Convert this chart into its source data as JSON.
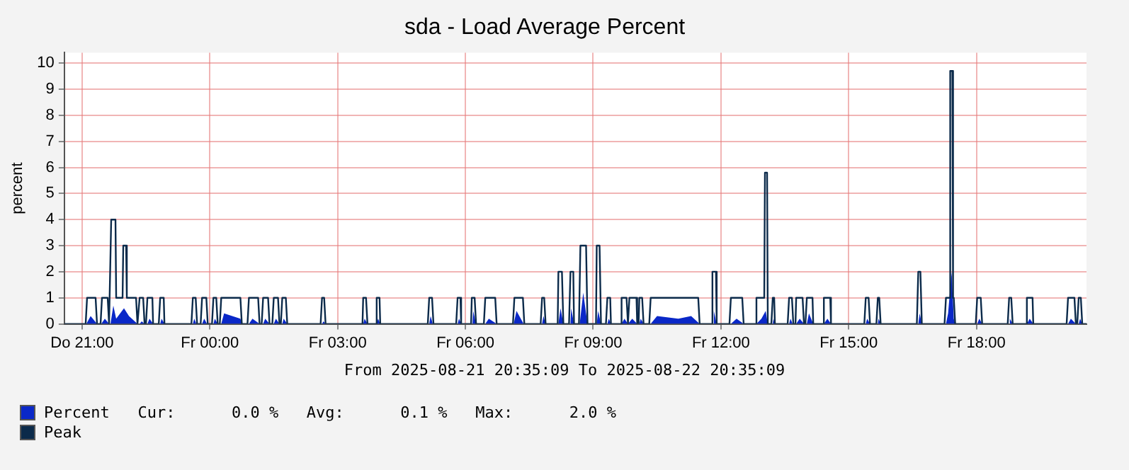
{
  "chart_data": {
    "type": "line",
    "title": "sda - Load Average Percent",
    "subtitle": "From 2025-08-21 20:35:09 To 2025-08-22 20:35:09",
    "ylabel": "percent",
    "annotations": [
      "Cur:      0.0 %   Avg:      0.1 %   Max:      2.0 %"
    ],
    "xlim": [
      "2025-08-21T20:35",
      "2025-08-22T20:35"
    ],
    "xticks": [
      {
        "value": "2025-08-21T21:00",
        "label": "Do 21:00"
      },
      {
        "value": "2025-08-22T00:00",
        "label": "Fr 00:00"
      },
      {
        "value": "2025-08-22T03:00",
        "label": "Fr 03:00"
      },
      {
        "value": "2025-08-22T06:00",
        "label": "Fr 06:00"
      },
      {
        "value": "2025-08-22T09:00",
        "label": "Fr 09:00"
      },
      {
        "value": "2025-08-22T12:00",
        "label": "Fr 12:00"
      },
      {
        "value": "2025-08-22T15:00",
        "label": "Fr 15:00"
      },
      {
        "value": "2025-08-22T18:00",
        "label": "Fr 18:00"
      }
    ],
    "ylim": [
      0,
      10.4
    ],
    "yticks": [
      0,
      1,
      2,
      3,
      4,
      5,
      6,
      7,
      8,
      9,
      10
    ],
    "grid": true,
    "legend": "bottom left",
    "marker": "none",
    "series": [
      {
        "name": "Percent",
        "type": "area",
        "color": "#0a28c8",
        "x": [
          "2025-08-21T20:35",
          "2025-08-21T21:06",
          "2025-08-21T21:12",
          "2025-08-21T21:21",
          "2025-08-21T21:27",
          "2025-08-21T21:32",
          "2025-08-21T21:38",
          "2025-08-21T21:40",
          "2025-08-21T21:44",
          "2025-08-21T21:48",
          "2025-08-21T21:59",
          "2025-08-21T22:06",
          "2025-08-21T22:18",
          "2025-08-21T22:21",
          "2025-08-21T22:24",
          "2025-08-21T22:28",
          "2025-08-21T22:32",
          "2025-08-21T22:35",
          "2025-08-21T22:40",
          "2025-08-21T22:50",
          "2025-08-21T22:52",
          "2025-08-21T22:56",
          "2025-08-21T23:36",
          "2025-08-21T23:38",
          "2025-08-21T23:41",
          "2025-08-21T23:49",
          "2025-08-21T23:52",
          "2025-08-21T23:56",
          "2025-08-22T00:05",
          "2025-08-22T00:07",
          "2025-08-22T00:11",
          "2025-08-22T00:16",
          "2025-08-22T00:20",
          "2025-08-22T00:43",
          "2025-08-22T00:45",
          "2025-08-22T00:55",
          "2025-08-22T01:00",
          "2025-08-22T01:10",
          "2025-08-22T01:15",
          "2025-08-22T01:18",
          "2025-08-22T01:24",
          "2025-08-22T01:30",
          "2025-08-22T01:33",
          "2025-08-22T01:38",
          "2025-08-22T01:42",
          "2025-08-22T01:44",
          "2025-08-22T01:49",
          "2025-08-22T02:38",
          "2025-08-22T02:40",
          "2025-08-22T02:43",
          "2025-08-22T03:36",
          "2025-08-22T03:38",
          "2025-08-22T03:42",
          "2025-08-22T03:55",
          "2025-08-22T03:57",
          "2025-08-22T04:00",
          "2025-08-22T05:09",
          "2025-08-22T05:11",
          "2025-08-22T05:14",
          "2025-08-22T05:49",
          "2025-08-22T05:51",
          "2025-08-22T05:54",
          "2025-08-22T06:10",
          "2025-08-22T06:11",
          "2025-08-22T06:15",
          "2025-08-22T06:28",
          "2025-08-22T06:33",
          "2025-08-22T06:44",
          "2025-08-22T07:08",
          "2025-08-22T07:12",
          "2025-08-22T07:22",
          "2025-08-22T07:48",
          "2025-08-22T07:50",
          "2025-08-22T07:53",
          "2025-08-22T08:11",
          "2025-08-22T08:14",
          "2025-08-22T08:18",
          "2025-08-22T08:28",
          "2025-08-22T08:29",
          "2025-08-22T08:33",
          "2025-08-22T08:41",
          "2025-08-22T08:46",
          "2025-08-22T08:52",
          "2025-08-22T09:05",
          "2025-08-22T09:07",
          "2025-08-22T09:11",
          "2025-08-22T09:20",
          "2025-08-22T09:22",
          "2025-08-22T09:25",
          "2025-08-22T09:40",
          "2025-08-22T09:44",
          "2025-08-22T09:49",
          "2025-08-22T09:50",
          "2025-08-22T09:55",
          "2025-08-22T10:02",
          "2025-08-22T10:05",
          "2025-08-22T10:07",
          "2025-08-22T10:11",
          "2025-08-22T10:21",
          "2025-08-22T10:30",
          "2025-08-22T11:00",
          "2025-08-22T11:18",
          "2025-08-22T11:30",
          "2025-08-22T11:49",
          "2025-08-22T11:50",
          "2025-08-22T11:54",
          "2025-08-22T12:14",
          "2025-08-22T12:22",
          "2025-08-22T12:32",
          "2025-08-22T12:50",
          "2025-08-22T12:57",
          "2025-08-22T13:03",
          "2025-08-22T13:06",
          "2025-08-22T13:13",
          "2025-08-22T13:14",
          "2025-08-22T13:16",
          "2025-08-22T13:36",
          "2025-08-22T13:38",
          "2025-08-22T13:41",
          "2025-08-22T13:46",
          "2025-08-22T13:51",
          "2025-08-22T13:57",
          "2025-08-22T14:01",
          "2025-08-22T14:04",
          "2025-08-22T14:10",
          "2025-08-22T14:25",
          "2025-08-22T14:30",
          "2025-08-22T14:35",
          "2025-08-22T15:24",
          "2025-08-22T15:26",
          "2025-08-22T15:30",
          "2025-08-22T15:41",
          "2025-08-22T15:42",
          "2025-08-22T15:45",
          "2025-08-22T16:38",
          "2025-08-22T16:40",
          "2025-08-22T16:43",
          "2025-08-22T17:17",
          "2025-08-22T17:20",
          "2025-08-22T17:25",
          "2025-08-22T17:28",
          "2025-08-22T17:30",
          "2025-08-22T18:01",
          "2025-08-22T18:04",
          "2025-08-22T18:08",
          "2025-08-22T18:46",
          "2025-08-22T18:47",
          "2025-08-22T18:51",
          "2025-08-22T19:11",
          "2025-08-22T19:15",
          "2025-08-22T19:20",
          "2025-08-22T20:09",
          "2025-08-22T20:13",
          "2025-08-22T20:20",
          "2025-08-22T20:24",
          "2025-08-22T20:26",
          "2025-08-22T20:29",
          "2025-08-22T20:35"
        ],
        "values": [
          0,
          0,
          0.3,
          0,
          0,
          0.2,
          0,
          0,
          0.7,
          0.2,
          0.6,
          0.3,
          0,
          0,
          0.1,
          0,
          0,
          0.2,
          0,
          0,
          0.2,
          0,
          0,
          0.2,
          0,
          0,
          0.2,
          0,
          0,
          0.2,
          0,
          0,
          0.4,
          0.2,
          0,
          0,
          0.2,
          0,
          0,
          0.2,
          0,
          0,
          0.2,
          0,
          0,
          0.2,
          0,
          0,
          0.1,
          0,
          0,
          0.2,
          0,
          0,
          0.2,
          0,
          0,
          0.3,
          0,
          0,
          0.2,
          0,
          0,
          0.5,
          0,
          0,
          0.2,
          0,
          0,
          0.5,
          0,
          0,
          0.3,
          0,
          0,
          0.6,
          0,
          0,
          0.6,
          0,
          0,
          1.2,
          0,
          0,
          0.5,
          0,
          0,
          0.2,
          0,
          0,
          0.2,
          0,
          0,
          0.2,
          0,
          0,
          0.2,
          0,
          0,
          0.3,
          0.2,
          0.3,
          0,
          0,
          0.5,
          0,
          0,
          0.2,
          0,
          0,
          0.2,
          0.5,
          0,
          0,
          0.2,
          0,
          0,
          0.2,
          0,
          0,
          0.2,
          0,
          0,
          0.4,
          0,
          0,
          0.2,
          0,
          0,
          0.2,
          0,
          0,
          0.2,
          0,
          0,
          0.4,
          0,
          0,
          0.4,
          2.0,
          0.2,
          0,
          0,
          0.2,
          0,
          0,
          0.2,
          0,
          0,
          0.2,
          0,
          0,
          0.2,
          0,
          0,
          0.2,
          0,
          0
        ]
      },
      {
        "name": "Peak",
        "color": "#0b2a4a",
        "x": [
          "2025-08-21T20:35",
          "2025-08-21T21:05",
          "2025-08-21T21:07",
          "2025-08-21T21:19",
          "2025-08-21T21:21",
          "2025-08-21T21:26",
          "2025-08-21T21:28",
          "2025-08-21T21:36",
          "2025-08-21T21:38",
          "2025-08-21T21:39",
          "2025-08-21T21:41",
          "2025-08-21T21:47",
          "2025-08-21T21:48",
          "2025-08-21T21:57",
          "2025-08-21T21:58",
          "2025-08-21T22:02",
          "2025-08-21T22:03",
          "2025-08-21T22:16",
          "2025-08-21T22:18",
          "2025-08-21T22:19",
          "2025-08-21T22:21",
          "2025-08-21T22:26",
          "2025-08-21T22:28",
          "2025-08-21T22:30",
          "2025-08-21T22:32",
          "2025-08-21T22:39",
          "2025-08-21T22:40",
          "2025-08-21T22:48",
          "2025-08-21T22:50",
          "2025-08-21T22:55",
          "2025-08-21T22:56",
          "2025-08-21T23:34",
          "2025-08-21T23:36",
          "2025-08-21T23:40",
          "2025-08-21T23:42",
          "2025-08-21T23:47",
          "2025-08-21T23:49",
          "2025-08-21T23:55",
          "2025-08-21T23:57",
          "2025-08-22T00:03",
          "2025-08-22T00:05",
          "2025-08-22T00:09",
          "2025-08-22T00:11",
          "2025-08-22T00:14",
          "2025-08-22T00:16",
          "2025-08-22T00:43",
          "2025-08-22T00:45",
          "2025-08-22T00:53",
          "2025-08-22T00:55",
          "2025-08-22T01:08",
          "2025-08-22T01:10",
          "2025-08-22T01:13",
          "2025-08-22T01:15",
          "2025-08-22T01:22",
          "2025-08-22T01:24",
          "2025-08-22T01:28",
          "2025-08-22T01:30",
          "2025-08-22T01:36",
          "2025-08-22T01:38",
          "2025-08-22T01:40",
          "2025-08-22T01:42",
          "2025-08-22T01:47",
          "2025-08-22T01:49",
          "2025-08-22T02:36",
          "2025-08-22T02:38",
          "2025-08-22T02:41",
          "2025-08-22T02:43",
          "2025-08-22T03:35",
          "2025-08-22T03:36",
          "2025-08-22T03:40",
          "2025-08-22T03:42",
          "2025-08-22T03:54",
          "2025-08-22T03:55",
          "2025-08-22T03:59",
          "2025-08-22T04:00",
          "2025-08-22T05:07",
          "2025-08-22T05:09",
          "2025-08-22T05:13",
          "2025-08-22T05:15",
          "2025-08-22T05:47",
          "2025-08-22T05:49",
          "2025-08-22T05:53",
          "2025-08-22T05:54",
          "2025-08-22T06:08",
          "2025-08-22T06:09",
          "2025-08-22T06:13",
          "2025-08-22T06:15",
          "2025-08-22T06:26",
          "2025-08-22T06:28",
          "2025-08-22T06:42",
          "2025-08-22T06:44",
          "2025-08-22T07:07",
          "2025-08-22T07:09",
          "2025-08-22T07:21",
          "2025-08-22T07:23",
          "2025-08-22T07:46",
          "2025-08-22T07:48",
          "2025-08-22T07:51",
          "2025-08-22T07:53",
          "2025-08-22T08:10",
          "2025-08-22T08:11",
          "2025-08-22T08:16",
          "2025-08-22T08:18",
          "2025-08-22T08:26",
          "2025-08-22T08:28",
          "2025-08-22T08:32",
          "2025-08-22T08:33",
          "2025-08-22T08:40",
          "2025-08-22T08:42",
          "2025-08-22T08:50",
          "2025-08-22T08:52",
          "2025-08-22T09:04",
          "2025-08-22T09:05",
          "2025-08-22T09:09",
          "2025-08-22T09:11",
          "2025-08-22T09:18",
          "2025-08-22T09:20",
          "2025-08-22T09:24",
          "2025-08-22T09:25",
          "2025-08-22T09:39",
          "2025-08-22T09:40",
          "2025-08-22T09:47",
          "2025-08-22T09:49",
          "2025-08-22T09:51",
          "2025-08-22T10:01",
          "2025-08-22T10:02",
          "2025-08-22T10:04",
          "2025-08-22T10:05",
          "2025-08-22T10:09",
          "2025-08-22T10:11",
          "2025-08-22T10:19",
          "2025-08-22T10:21",
          "2025-08-22T11:28",
          "2025-08-22T11:30",
          "2025-08-22T11:47",
          "2025-08-22T11:48",
          "2025-08-22T11:53",
          "2025-08-22T11:54",
          "2025-08-22T12:12",
          "2025-08-22T12:14",
          "2025-08-22T12:30",
          "2025-08-22T12:32",
          "2025-08-22T12:49",
          "2025-08-22T12:50",
          "2025-08-22T13:01",
          "2025-08-22T13:02",
          "2025-08-22T13:05",
          "2025-08-22T13:06",
          "2025-08-22T13:11",
          "2025-08-22T13:13",
          "2025-08-22T13:15",
          "2025-08-22T13:16",
          "2025-08-22T13:34",
          "2025-08-22T13:36",
          "2025-08-22T13:40",
          "2025-08-22T13:42",
          "2025-08-22T13:45",
          "2025-08-22T13:46",
          "2025-08-22T13:55",
          "2025-08-22T13:57",
          "2025-08-22T13:59",
          "2025-08-22T14:01",
          "2025-08-22T14:09",
          "2025-08-22T14:10",
          "2025-08-22T14:24",
          "2025-08-22T14:25",
          "2025-08-22T14:34",
          "2025-08-22T14:35",
          "2025-08-22T15:22",
          "2025-08-22T15:24",
          "2025-08-22T15:28",
          "2025-08-22T15:30",
          "2025-08-22T15:39",
          "2025-08-22T15:41",
          "2025-08-22T15:43",
          "2025-08-22T15:45",
          "2025-08-22T16:36",
          "2025-08-22T16:38",
          "2025-08-22T16:41",
          "2025-08-22T16:43",
          "2025-08-22T17:15",
          "2025-08-22T17:17",
          "2025-08-22T17:22",
          "2025-08-22T17:23",
          "2025-08-22T17:26",
          "2025-08-22T17:27",
          "2025-08-22T17:28",
          "2025-08-22T17:30",
          "2025-08-22T17:59",
          "2025-08-22T18:01",
          "2025-08-22T18:06",
          "2025-08-22T18:08",
          "2025-08-22T18:44",
          "2025-08-22T18:46",
          "2025-08-22T18:49",
          "2025-08-22T18:51",
          "2025-08-22T19:10",
          "2025-08-22T19:11",
          "2025-08-22T19:19",
          "2025-08-22T19:20",
          "2025-08-22T20:07",
          "2025-08-22T20:09",
          "2025-08-22T20:18",
          "2025-08-22T20:20",
          "2025-08-22T20:22",
          "2025-08-22T20:24",
          "2025-08-22T20:27",
          "2025-08-22T20:29",
          "2025-08-22T20:35"
        ],
        "values": [
          0,
          0,
          1,
          1,
          0,
          0,
          1,
          1,
          0,
          0,
          4,
          4,
          1,
          1,
          3,
          3,
          1,
          1,
          0,
          0,
          1,
          1,
          0,
          0,
          1,
          1,
          0,
          0,
          1,
          1,
          0,
          0,
          1,
          1,
          0,
          0,
          1,
          1,
          0,
          0,
          1,
          1,
          0,
          0,
          1,
          1,
          0,
          0,
          1,
          1,
          0,
          0,
          1,
          1,
          0,
          0,
          1,
          1,
          0,
          0,
          1,
          1,
          0,
          0,
          1,
          1,
          0,
          0,
          1,
          1,
          0,
          0,
          1,
          1,
          0,
          0,
          1,
          1,
          0,
          0,
          1,
          1,
          0,
          0,
          1,
          1,
          0,
          0,
          1,
          1,
          0,
          0,
          1,
          1,
          0,
          0,
          1,
          1,
          0,
          0,
          2,
          2,
          0,
          0,
          2,
          2,
          0,
          0,
          3,
          3,
          0,
          0,
          3,
          3,
          0,
          0,
          1,
          1,
          0,
          0,
          1,
          1,
          0,
          1,
          1,
          0,
          0,
          1,
          1,
          0,
          0,
          1,
          1,
          0,
          0,
          2,
          2,
          0,
          0,
          1,
          1,
          0,
          0,
          1,
          1,
          5.8,
          5.8,
          0,
          0,
          1,
          1,
          0,
          0,
          1,
          1,
          0,
          0,
          1,
          1,
          0,
          0,
          1,
          1,
          0,
          0,
          1,
          1,
          0,
          0,
          1,
          1,
          0,
          0,
          1,
          1,
          0,
          0,
          2,
          2,
          0,
          0,
          1,
          1,
          9.7,
          9.7,
          1,
          1,
          0,
          0,
          1,
          1,
          0,
          0,
          1,
          1,
          0,
          0,
          1,
          1,
          0,
          0,
          1,
          1,
          0,
          0,
          1,
          1,
          0,
          0
        ]
      }
    ]
  }
}
